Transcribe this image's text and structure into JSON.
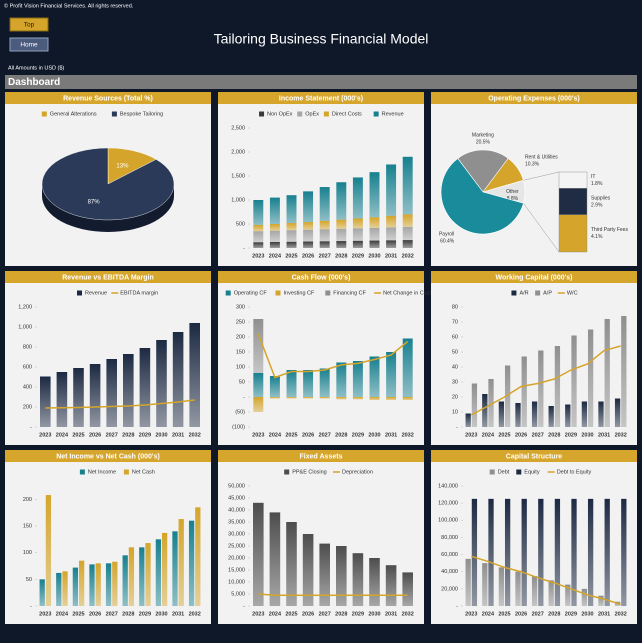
{
  "header": {
    "copyright": "© Profit Vision Financial Services. All rights reserved.",
    "buttons": [
      "Top",
      "Home"
    ],
    "title": "Tailoring Business Financial Model",
    "currency_note": "All Amounts in  USD ($)",
    "section": "Dashboard"
  },
  "chart_data": [
    {
      "type": "pie",
      "title": "Revenue Sources (Total %)",
      "categories": [
        "General Alterations",
        "Bespoke Tailoring"
      ],
      "values": [
        13,
        87
      ],
      "value_labels": [
        "13%",
        "87%"
      ],
      "colors": [
        "#d4a52a",
        "#2b3a58"
      ]
    },
    {
      "type": "bar",
      "stacked": true,
      "title": "Income Statement (000's)",
      "categories": [
        "2023",
        "2024",
        "2025",
        "2026",
        "2027",
        "2028",
        "2029",
        "2030",
        "2031",
        "2032"
      ],
      "series": [
        {
          "name": "Non OpEx",
          "color": "#3a3a3a",
          "values": [
            120,
            125,
            130,
            135,
            140,
            145,
            150,
            155,
            160,
            165
          ]
        },
        {
          "name": "OpEx",
          "color": "#a6a6a6",
          "values": [
            230,
            235,
            240,
            245,
            250,
            255,
            260,
            265,
            270,
            275
          ]
        },
        {
          "name": "Direct Costs",
          "color": "#d4a52a",
          "values": [
            130,
            140,
            150,
            160,
            175,
            190,
            205,
            220,
            240,
            260
          ]
        },
        {
          "name": "Revenue",
          "color": "#17808f",
          "values": [
            520,
            550,
            580,
            640,
            705,
            780,
            855,
            940,
            1070,
            1200
          ]
        }
      ],
      "ylim": [
        0,
        2500
      ],
      "yticks": [
        {
          "value": 0,
          "label": "-"
        },
        500,
        {
          "value": 1000,
          "label": "1,000"
        },
        {
          "value": 1500,
          "label": "1,500"
        },
        {
          "value": 2000,
          "label": "2,000"
        },
        {
          "value": 2500,
          "label": "2,500"
        }
      ]
    },
    {
      "type": "pie",
      "title": "Operating Expenses (000's)",
      "categories": [
        "Marketing",
        "Rent & Utilities",
        "Other",
        "Payroll"
      ],
      "values": [
        20.5,
        10.3,
        8.8,
        60.4
      ],
      "value_labels": [
        "20.5%",
        "10.3%",
        "8.8%",
        "60.4%"
      ],
      "colors": [
        "#8f8f8f",
        "#d4a52a",
        "#e6e6e6",
        "#1a8b9b"
      ],
      "secondary": {
        "categories": [
          "IT",
          "Supplies",
          "Third Party Fees"
        ],
        "values": [
          1.8,
          2.9,
          4.1
        ],
        "value_labels": [
          "1.8%",
          "2.9%",
          "4.1%"
        ],
        "colors": [
          "#f4f4f4",
          "#1f2c44",
          "#d4a52a"
        ]
      }
    },
    {
      "type": "bar",
      "title": "Revenue vs EBITDA Margin",
      "categories": [
        "2023",
        "2024",
        "2025",
        "2026",
        "2027",
        "2028",
        "2029",
        "2030",
        "2031",
        "2032"
      ],
      "series": [
        {
          "name": "Revenue",
          "color": "#1c2942",
          "values": [
            505,
            550,
            590,
            630,
            680,
            730,
            790,
            870,
            950,
            1040
          ]
        },
        {
          "name": "EBITDA margin",
          "type": "line",
          "color": "#d4a52a",
          "values": [
            190,
            192,
            195,
            200,
            205,
            210,
            220,
            235,
            250,
            270
          ]
        }
      ],
      "ylim": [
        0,
        1200
      ],
      "yticks": [
        {
          "value": 0,
          "label": "-"
        },
        200,
        400,
        600,
        800,
        {
          "value": 1000,
          "label": "1,000"
        },
        {
          "value": 1200,
          "label": "1,200"
        }
      ]
    },
    {
      "type": "bar",
      "stacked": true,
      "title": "Cash Flow (000's)",
      "categories": [
        "2023",
        "2024",
        "2025",
        "2026",
        "2027",
        "2028",
        "2029",
        "2030",
        "2031",
        "2032"
      ],
      "series": [
        {
          "name": "Operating CF",
          "color": "#17808f",
          "values": [
            80,
            70,
            90,
            90,
            95,
            115,
            120,
            135,
            150,
            195
          ]
        },
        {
          "name": "Investing CF",
          "color": "#d4a52a",
          "values": [
            -50,
            -5,
            -5,
            -5,
            -5,
            -8,
            -8,
            -10,
            -10,
            -10
          ]
        },
        {
          "name": "Financing CF",
          "color": "#8f8f8f",
          "values": [
            180,
            0,
            0,
            0,
            0,
            0,
            0,
            0,
            0,
            0
          ]
        },
        {
          "name": "Net Change in Cash",
          "type": "line",
          "color": "#d4a52a",
          "values": [
            210,
            65,
            85,
            85,
            90,
            107,
            112,
            125,
            140,
            185
          ]
        }
      ],
      "ylim": [
        -100,
        300
      ],
      "yticks": [
        {
          "value": -100,
          "label": "(100)"
        },
        {
          "value": -50,
          "label": "(50)"
        },
        {
          "value": 0,
          "label": "-"
        },
        50,
        100,
        150,
        200,
        250,
        300
      ]
    },
    {
      "type": "bar",
      "title": "Working Capital (000's)",
      "categories": [
        "2023",
        "2024",
        "2025",
        "2026",
        "2027",
        "2028",
        "2029",
        "2030",
        "2031",
        "2032"
      ],
      "series": [
        {
          "name": "A/R",
          "color": "#1c2942",
          "values": [
            9,
            22,
            17,
            16,
            17,
            14,
            15,
            17,
            17,
            19
          ]
        },
        {
          "name": "A/P",
          "color": "#8f8f8f",
          "values": [
            29,
            32,
            41,
            47,
            51,
            54,
            61,
            65,
            72,
            74
          ]
        },
        {
          "name": "W/C",
          "type": "line",
          "color": "#d4a52a",
          "values": [
            8,
            14,
            20,
            27,
            29,
            32,
            38,
            42,
            51,
            54
          ]
        }
      ],
      "ylim": [
        0,
        80
      ],
      "yticks": [
        {
          "value": 0,
          "label": "-"
        },
        10,
        20,
        30,
        40,
        50,
        60,
        70,
        80
      ]
    },
    {
      "type": "bar",
      "title": "Net Income vs Net Cash (000's)",
      "categories": [
        "2023",
        "2024",
        "2025",
        "2026",
        "2027",
        "2028",
        "2029",
        "2030",
        "2031",
        "2032"
      ],
      "series": [
        {
          "name": "Net Income",
          "color": "#17808f",
          "values": [
            50,
            62,
            72,
            78,
            80,
            95,
            110,
            125,
            140,
            160
          ]
        },
        {
          "name": "Net Cash",
          "color": "#d4a52a",
          "values": [
            208,
            65,
            85,
            80,
            83,
            110,
            118,
            137,
            163,
            185
          ]
        }
      ],
      "ylim": [
        0,
        225
      ],
      "yticks": [
        {
          "value": 0,
          "label": "-"
        },
        50,
        100,
        150,
        200
      ]
    },
    {
      "type": "bar",
      "title": "Fixed Assets",
      "categories": [
        "2023",
        "2024",
        "2025",
        "2026",
        "2027",
        "2028",
        "2029",
        "2030",
        "2031",
        "2032"
      ],
      "series": [
        {
          "name": "PP&E Closing",
          "color": "#4d4d4d",
          "values": [
            43000,
            39000,
            35000,
            30000,
            26000,
            25000,
            22000,
            20000,
            17000,
            14000
          ]
        },
        {
          "name": "Depreciation",
          "type": "line",
          "color": "#d4a52a",
          "values": [
            5000,
            4500,
            4500,
            4500,
            4500,
            4500,
            4500,
            4500,
            4500,
            4500
          ]
        }
      ],
      "ylim": [
        0,
        50000
      ],
      "yticks": [
        {
          "value": 0,
          "label": "-"
        },
        {
          "value": 5000,
          "label": "5,000"
        },
        {
          "value": 10000,
          "label": "10,000"
        },
        {
          "value": 15000,
          "label": "15,000"
        },
        {
          "value": 20000,
          "label": "20,000"
        },
        {
          "value": 25000,
          "label": "25,000"
        },
        {
          "value": 30000,
          "label": "30,000"
        },
        {
          "value": 35000,
          "label": "35,000"
        },
        {
          "value": 40000,
          "label": "40,000"
        },
        {
          "value": 45000,
          "label": "45,000"
        },
        {
          "value": 50000,
          "label": "50,000"
        }
      ]
    },
    {
      "type": "bar",
      "title": "Capital Structure",
      "categories": [
        "2023",
        "2024",
        "2025",
        "2026",
        "2027",
        "2028",
        "2029",
        "2030",
        "2031",
        "2032"
      ],
      "series": [
        {
          "name": "Debt",
          "color": "#8f8f8f",
          "values": [
            55000,
            50000,
            45000,
            40000,
            35000,
            30000,
            25000,
            20000,
            12000,
            5000
          ]
        },
        {
          "name": "Equity",
          "color": "#1c2942",
          "values": [
            125000,
            125000,
            125000,
            125000,
            125000,
            125000,
            125000,
            125000,
            125000,
            125000
          ]
        },
        {
          "name": "Debt to Equity",
          "type": "line",
          "color": "#d4a52a",
          "values": [
            58000,
            52000,
            45000,
            40000,
            33000,
            27000,
            20000,
            13000,
            8000,
            2000
          ]
        }
      ],
      "ylim": [
        0,
        140000
      ],
      "yticks": [
        {
          "value": 0,
          "label": "-"
        },
        {
          "value": 20000,
          "label": "20,000"
        },
        {
          "value": 40000,
          "label": "40,000"
        },
        {
          "value": 60000,
          "label": "60,000"
        },
        {
          "value": 80000,
          "label": "80,000"
        },
        {
          "value": 100000,
          "label": "100,000"
        },
        {
          "value": 120000,
          "label": "120,000"
        },
        {
          "value": 140000,
          "label": "140,000"
        }
      ]
    }
  ]
}
